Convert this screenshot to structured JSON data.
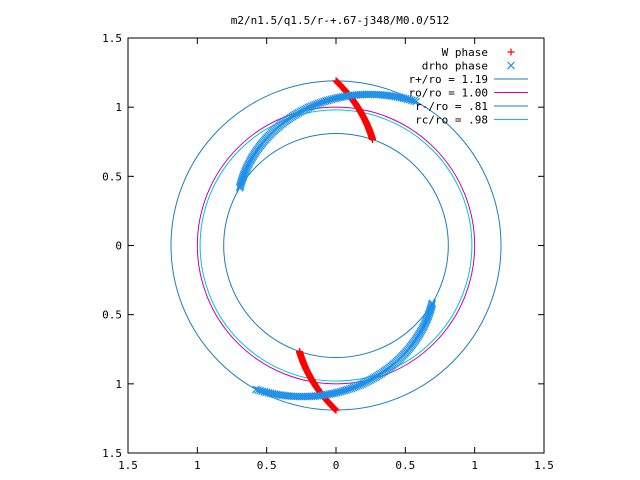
{
  "chart_data": {
    "type": "scatter",
    "title": "m2/n1.5/q1.5/r-+.67-j348/M0.0/512",
    "xlabel": "",
    "ylabel": "",
    "xlim": [
      -1.5,
      1.5
    ],
    "ylim": [
      -1.5,
      1.5
    ],
    "x_ticks": [
      -1.5,
      -1,
      -0.5,
      0,
      0.5,
      1,
      1.5
    ],
    "y_ticks": [
      -1.5,
      -1,
      -0.5,
      0,
      0.5,
      1,
      1.5
    ],
    "x_tick_labels": [
      "1.5",
      "1",
      "0.5",
      "0",
      "0.5",
      "1",
      "1.5"
    ],
    "y_tick_labels": [
      "1.5",
      "1",
      "0.5",
      "0",
      "0.5",
      "1",
      "1.5"
    ],
    "legend_position": "top-right",
    "grid": false,
    "series": [
      {
        "name": "W phase",
        "kind": "points",
        "marker": "plus",
        "color": "#ff0000",
        "arcs": [
          {
            "r_start": 1.19,
            "r_end": 0.81,
            "angle_start_deg": 90,
            "angle_end_deg": 71
          },
          {
            "r_start": 1.19,
            "r_end": 0.81,
            "angle_start_deg": 270,
            "angle_end_deg": 251
          }
        ]
      },
      {
        "name": "drho phase",
        "kind": "points",
        "marker": "cross",
        "color": "#1f8fe8",
        "arcs": [
          {
            "r_start": 1.19,
            "r_end": 0.81,
            "angle_start_deg": 61,
            "angle_end_deg": 149
          },
          {
            "r_start": 1.19,
            "r_end": 0.81,
            "angle_start_deg": 241,
            "angle_end_deg": 329
          }
        ]
      },
      {
        "name": "r+/ro = 1.19",
        "kind": "circle",
        "radius": 1.19,
        "color": "#1a7ec0"
      },
      {
        "name": "ro/ro = 1.00",
        "kind": "circle",
        "radius": 1.0,
        "color": "#c000c0"
      },
      {
        "name": "r-/ro = .81",
        "kind": "circle",
        "radius": 0.81,
        "color": "#1a7ec0"
      },
      {
        "name": "rc/ro = .98",
        "kind": "circle",
        "radius": 0.98,
        "color": "#00c8c8"
      }
    ]
  },
  "legend": {
    "items": [
      {
        "label": "W phase"
      },
      {
        "label": "drho phase"
      },
      {
        "label": "r+/ro = 1.19"
      },
      {
        "label": "ro/ro = 1.00"
      },
      {
        "label": "r-/ro = .81"
      },
      {
        "label": "rc/ro = .98"
      }
    ]
  }
}
